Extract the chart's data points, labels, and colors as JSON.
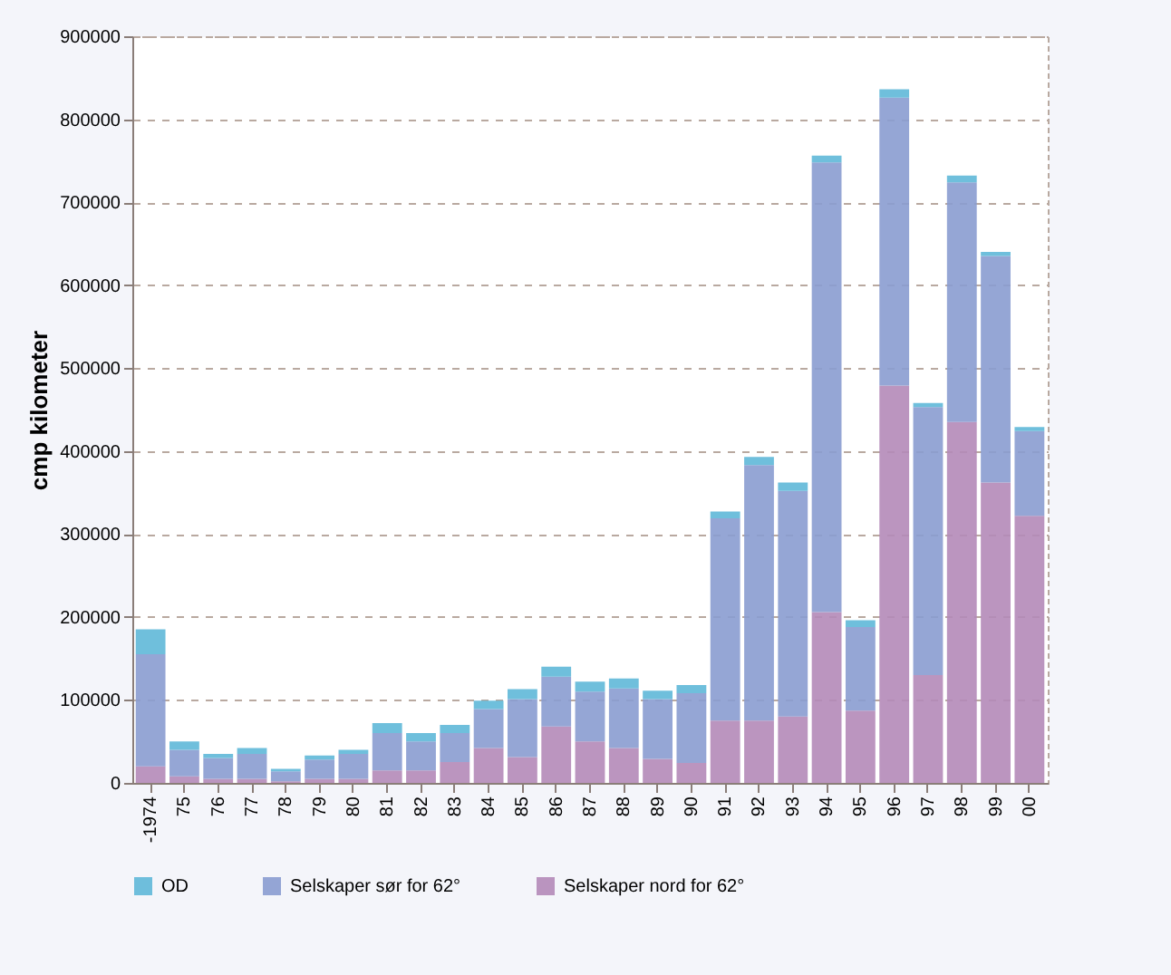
{
  "chart_data": {
    "type": "bar",
    "stacked": true,
    "ylabel": "cmp kilometer",
    "categories": [
      "-1974",
      "75",
      "76",
      "77",
      "78",
      "79",
      "80",
      "81",
      "82",
      "83",
      "84",
      "85",
      "86",
      "87",
      "88",
      "89",
      "90",
      "91",
      "92",
      "93",
      "94",
      "95",
      "96",
      "97",
      "98",
      "99",
      "00"
    ],
    "series": [
      {
        "name": "Selskaper nord for 62°",
        "color": "#b48ab8",
        "values": [
          20000,
          8000,
          5000,
          5000,
          2000,
          5000,
          5000,
          15000,
          15000,
          25000,
          42000,
          31000,
          68000,
          50000,
          42000,
          29000,
          24000,
          75000,
          75000,
          80000,
          206000,
          87000,
          479000,
          130000,
          435000,
          362000,
          322000
        ]
      },
      {
        "name": "Selskaper sør for 62°",
        "color": "#8a9cd0",
        "values": [
          135000,
          32000,
          25000,
          30000,
          12000,
          23000,
          30000,
          45000,
          35000,
          35000,
          47000,
          70000,
          60000,
          60000,
          72000,
          72000,
          84000,
          244000,
          308000,
          272000,
          542000,
          101000,
          347000,
          323000,
          289000,
          273000,
          102000
        ]
      },
      {
        "name": "OD",
        "color": "#5fb8d8",
        "values": [
          30000,
          10000,
          5000,
          7000,
          3000,
          5000,
          5000,
          12000,
          10000,
          10000,
          10000,
          12000,
          12000,
          12000,
          12000,
          10000,
          10000,
          8000,
          10000,
          10000,
          8000,
          8000,
          10000,
          5000,
          8000,
          5000,
          5000
        ]
      }
    ],
    "ylim": [
      0,
      900000
    ],
    "yticks": [
      0,
      100000,
      200000,
      300000,
      400000,
      500000,
      600000,
      700000,
      800000,
      900000
    ],
    "grid": "y",
    "legend": "bottom"
  }
}
